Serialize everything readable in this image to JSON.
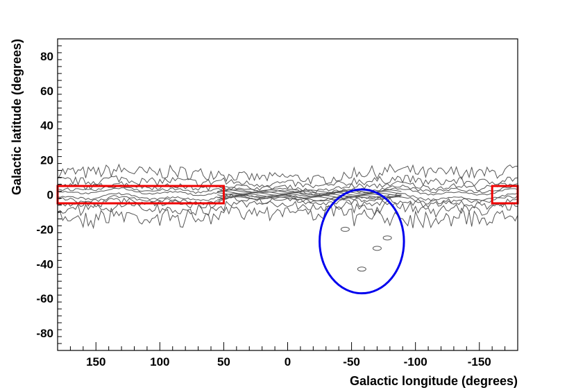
{
  "chart_data": {
    "type": "contour",
    "xlabel": "Galactic longitude (degrees)",
    "ylabel": "Galactic latitude (degrees)",
    "xlim": [
      180,
      -180
    ],
    "ylim": [
      -90,
      90
    ],
    "x_ticks": [
      150,
      100,
      50,
      0,
      -50,
      -100,
      -150
    ],
    "y_ticks": [
      80,
      60,
      40,
      20,
      0,
      -20,
      -40,
      -60,
      -80
    ],
    "x_reversed": true,
    "grid": false,
    "colors": {
      "contour": "#555555",
      "region_box": "#ee0000",
      "ellipse": "#0000ee",
      "frame": "#000000"
    },
    "regions": [
      {
        "shape": "rectangle",
        "lon_range": [
          180,
          50
        ],
        "lat_range": [
          -5,
          5
        ],
        "color": "#ee0000"
      },
      {
        "shape": "rectangle",
        "lon_range": [
          -160,
          -180
        ],
        "lat_range": [
          -5,
          5
        ],
        "color": "#ee0000"
      },
      {
        "shape": "ellipse",
        "center": [
          -58,
          -27
        ],
        "half_width_deg": 33,
        "half_height_deg": 30,
        "color": "#0000ee"
      }
    ],
    "contours": [
      {
        "level": 1,
        "lat_half_width_deg": 13
      },
      {
        "level": 2,
        "lat_half_width_deg": 8
      },
      {
        "level": 3,
        "lat_half_width_deg": 5
      },
      {
        "level": 4,
        "lat_half_width_deg": 3
      },
      {
        "level": 5,
        "lat_half_width_deg": 1.5
      }
    ],
    "isolated_clouds": [
      {
        "lon": -70,
        "lat": -31
      },
      {
        "lon": -58,
        "lat": -43
      },
      {
        "lon": -45,
        "lat": -20
      },
      {
        "lon": -78,
        "lat": -25
      }
    ]
  }
}
